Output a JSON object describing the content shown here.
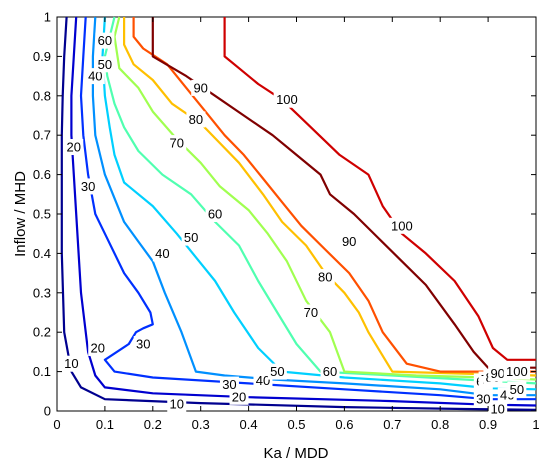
{
  "chart_data": {
    "type": "contour",
    "title": "",
    "xlabel": "Ka / MDD",
    "ylabel": "Inflow / MHD",
    "xlim": [
      0,
      1
    ],
    "ylim": [
      0,
      1
    ],
    "xticks": [
      "0",
      "0.1",
      "0.2",
      "0.3",
      "0.4",
      "0.5",
      "0.6",
      "0.7",
      "0.8",
      "0.9",
      "1"
    ],
    "yticks": [
      "0",
      "0.1",
      "0.2",
      "0.3",
      "0.4",
      "0.5",
      "0.6",
      "0.7",
      "0.8",
      "0.9",
      "1"
    ],
    "grid": false,
    "colormap": "jet",
    "levels": [
      {
        "level": "10",
        "color": "#00008f",
        "points": [
          [
            0.02,
            1.0
          ],
          [
            0.015,
            0.9
          ],
          [
            0.012,
            0.8
          ],
          [
            0.01,
            0.7
          ],
          [
            0.01,
            0.6
          ],
          [
            0.01,
            0.4
          ],
          [
            0.015,
            0.2
          ],
          [
            0.03,
            0.1
          ],
          [
            0.05,
            0.06
          ],
          [
            0.1,
            0.03
          ],
          [
            0.3,
            0.02
          ],
          [
            0.6,
            0.01
          ],
          [
            0.85,
            0.005
          ],
          [
            1.0,
            0.003
          ]
        ],
        "labels": [
          [
            0.03,
            0.12
          ],
          [
            0.25,
            0.018
          ],
          [
            0.92,
            0.005
          ]
        ]
      },
      {
        "level": "20",
        "color": "#0000cf",
        "points": [
          [
            0.04,
            1.0
          ],
          [
            0.035,
            0.9
          ],
          [
            0.03,
            0.8
          ],
          [
            0.03,
            0.7
          ],
          [
            0.035,
            0.6
          ],
          [
            0.04,
            0.5
          ],
          [
            0.05,
            0.3
          ],
          [
            0.065,
            0.15
          ],
          [
            0.08,
            0.09
          ],
          [
            0.1,
            0.06
          ],
          [
            0.2,
            0.045
          ],
          [
            0.4,
            0.035
          ],
          [
            0.7,
            0.025
          ],
          [
            0.9,
            0.016
          ],
          [
            1.0,
            0.014
          ]
        ],
        "labels": [
          [
            0.035,
            0.67
          ],
          [
            0.085,
            0.16
          ],
          [
            0.38,
            0.036
          ]
        ]
      },
      {
        "level": "30",
        "color": "#0030ff",
        "points": [
          [
            0.06,
            1.0
          ],
          [
            0.055,
            0.9
          ],
          [
            0.05,
            0.8
          ],
          [
            0.055,
            0.7
          ],
          [
            0.065,
            0.6
          ],
          [
            0.08,
            0.5
          ],
          [
            0.1,
            0.45
          ],
          [
            0.14,
            0.35
          ],
          [
            0.17,
            0.3
          ],
          [
            0.195,
            0.25
          ],
          [
            0.2,
            0.22
          ],
          [
            0.18,
            0.21
          ],
          [
            0.165,
            0.2
          ],
          [
            0.15,
            0.17
          ],
          [
            0.1,
            0.13
          ],
          [
            0.12,
            0.1
          ],
          [
            0.2,
            0.085
          ],
          [
            0.4,
            0.07
          ],
          [
            0.6,
            0.055
          ],
          [
            0.8,
            0.04
          ],
          [
            0.9,
            0.03
          ],
          [
            1.0,
            0.03
          ]
        ],
        "labels": [
          [
            0.065,
            0.57
          ],
          [
            0.18,
            0.17
          ],
          [
            0.36,
            0.067
          ],
          [
            0.89,
            0.03
          ]
        ]
      },
      {
        "level": "40",
        "color": "#0090ff",
        "points": [
          [
            0.08,
            1.0
          ],
          [
            0.075,
            0.9
          ],
          [
            0.075,
            0.8
          ],
          [
            0.08,
            0.7
          ],
          [
            0.1,
            0.6
          ],
          [
            0.14,
            0.48
          ],
          [
            0.17,
            0.43
          ],
          [
            0.2,
            0.38
          ],
          [
            0.225,
            0.3
          ],
          [
            0.26,
            0.2
          ],
          [
            0.29,
            0.1
          ],
          [
            0.35,
            0.09
          ],
          [
            0.45,
            0.08
          ],
          [
            0.6,
            0.07
          ],
          [
            0.8,
            0.055
          ],
          [
            0.9,
            0.04
          ],
          [
            1.0,
            0.04
          ]
        ],
        "labels": [
          [
            0.08,
            0.85
          ],
          [
            0.22,
            0.4
          ],
          [
            0.43,
            0.077
          ],
          [
            0.94,
            0.04
          ]
        ]
      },
      {
        "level": "50",
        "color": "#00d0ff",
        "points": [
          [
            0.1,
            1.0
          ],
          [
            0.095,
            0.9
          ],
          [
            0.1,
            0.8
          ],
          [
            0.11,
            0.72
          ],
          [
            0.12,
            0.65
          ],
          [
            0.14,
            0.58
          ],
          [
            0.2,
            0.52
          ],
          [
            0.25,
            0.45
          ],
          [
            0.29,
            0.39
          ],
          [
            0.33,
            0.33
          ],
          [
            0.37,
            0.25
          ],
          [
            0.42,
            0.16
          ],
          [
            0.47,
            0.1
          ],
          [
            0.6,
            0.085
          ],
          [
            0.8,
            0.07
          ],
          [
            0.9,
            0.058
          ],
          [
            1.0,
            0.055
          ]
        ],
        "labels": [
          [
            0.1,
            0.88
          ],
          [
            0.28,
            0.44
          ],
          [
            0.46,
            0.1
          ],
          [
            0.96,
            0.055
          ]
        ]
      },
      {
        "level": "60",
        "color": "#50ffb0",
        "points": [
          [
            0.12,
            1.0
          ],
          [
            0.11,
            0.95
          ],
          [
            0.1,
            0.9
          ],
          [
            0.105,
            0.85
          ],
          [
            0.12,
            0.78
          ],
          [
            0.14,
            0.72
          ],
          [
            0.17,
            0.66
          ],
          [
            0.22,
            0.6
          ],
          [
            0.28,
            0.55
          ],
          [
            0.33,
            0.48
          ],
          [
            0.38,
            0.42
          ],
          [
            0.42,
            0.33
          ],
          [
            0.46,
            0.25
          ],
          [
            0.5,
            0.17
          ],
          [
            0.55,
            0.1
          ],
          [
            0.7,
            0.09
          ],
          [
            0.85,
            0.08
          ],
          [
            1.0,
            0.07
          ]
        ],
        "labels": [
          [
            0.1,
            0.94
          ],
          [
            0.33,
            0.5
          ],
          [
            0.57,
            0.1
          ],
          [
            0.89,
            0.075
          ]
        ]
      },
      {
        "level": "70",
        "color": "#a0ff50",
        "points": [
          [
            0.13,
            1.0
          ],
          [
            0.12,
            0.95
          ],
          [
            0.13,
            0.87
          ],
          [
            0.17,
            0.82
          ],
          [
            0.2,
            0.76
          ],
          [
            0.25,
            0.69
          ],
          [
            0.3,
            0.63
          ],
          [
            0.34,
            0.57
          ],
          [
            0.4,
            0.51
          ],
          [
            0.44,
            0.45
          ],
          [
            0.48,
            0.38
          ],
          [
            0.52,
            0.28
          ],
          [
            0.57,
            0.2
          ],
          [
            0.6,
            0.1
          ],
          [
            0.75,
            0.09
          ],
          [
            0.9,
            0.085
          ],
          [
            1.0,
            0.08
          ]
        ],
        "labels": [
          [
            0.25,
            0.68
          ],
          [
            0.53,
            0.25
          ],
          [
            0.9,
            0.08
          ]
        ]
      },
      {
        "level": "80",
        "color": "#ffc000",
        "points": [
          [
            0.14,
            1.0
          ],
          [
            0.14,
            0.93
          ],
          [
            0.16,
            0.88
          ],
          [
            0.2,
            0.84
          ],
          [
            0.24,
            0.78
          ],
          [
            0.3,
            0.73
          ],
          [
            0.34,
            0.68
          ],
          [
            0.38,
            0.63
          ],
          [
            0.43,
            0.55
          ],
          [
            0.47,
            0.48
          ],
          [
            0.52,
            0.42
          ],
          [
            0.56,
            0.35
          ],
          [
            0.6,
            0.3
          ],
          [
            0.63,
            0.25
          ],
          [
            0.65,
            0.2
          ],
          [
            0.7,
            0.1
          ],
          [
            0.85,
            0.095
          ],
          [
            1.0,
            0.09
          ]
        ],
        "labels": [
          [
            0.29,
            0.74
          ],
          [
            0.56,
            0.34
          ],
          [
            0.91,
            0.085
          ]
        ]
      },
      {
        "level": "90",
        "color": "#ff5000",
        "points": [
          [
            0.16,
            1.0
          ],
          [
            0.16,
            0.95
          ],
          [
            0.18,
            0.92
          ],
          [
            0.23,
            0.88
          ],
          [
            0.27,
            0.82
          ],
          [
            0.31,
            0.76
          ],
          [
            0.35,
            0.7
          ],
          [
            0.39,
            0.65
          ],
          [
            0.43,
            0.59
          ],
          [
            0.47,
            0.53
          ],
          [
            0.51,
            0.47
          ],
          [
            0.56,
            0.41
          ],
          [
            0.61,
            0.35
          ],
          [
            0.65,
            0.28
          ],
          [
            0.68,
            0.2
          ],
          [
            0.73,
            0.12
          ],
          [
            0.8,
            0.1
          ],
          [
            0.9,
            0.1
          ],
          [
            1.0,
            0.1
          ]
        ],
        "labels": [
          [
            0.3,
            0.82
          ],
          [
            0.61,
            0.43
          ],
          [
            0.92,
            0.095
          ]
        ]
      },
      {
        "level": "100",
        "color": "#cf0000",
        "points": [
          [
            0.35,
            1.0
          ],
          [
            0.35,
            0.9
          ],
          [
            0.38,
            0.87
          ],
          [
            0.42,
            0.83
          ],
          [
            0.47,
            0.79
          ],
          [
            0.53,
            0.72
          ],
          [
            0.59,
            0.65
          ],
          [
            0.65,
            0.6
          ],
          [
            0.68,
            0.52
          ],
          [
            0.72,
            0.45
          ],
          [
            0.77,
            0.4
          ],
          [
            0.83,
            0.33
          ],
          [
            0.88,
            0.24
          ],
          [
            0.91,
            0.16
          ],
          [
            0.94,
            0.13
          ],
          [
            1.0,
            0.13
          ]
        ],
        "labels": [
          [
            0.48,
            0.79
          ],
          [
            0.72,
            0.47
          ],
          [
            0.96,
            0.1
          ]
        ]
      },
      {
        "level": "",
        "color": "#800000",
        "points": [
          [
            0.2,
            1.0
          ],
          [
            0.2,
            0.9
          ],
          [
            0.27,
            0.85
          ],
          [
            0.33,
            0.8
          ],
          [
            0.39,
            0.75
          ],
          [
            0.45,
            0.7
          ],
          [
            0.5,
            0.65
          ],
          [
            0.55,
            0.6
          ],
          [
            0.57,
            0.55
          ],
          [
            0.62,
            0.5
          ],
          [
            0.67,
            0.44
          ],
          [
            0.72,
            0.38
          ],
          [
            0.77,
            0.32
          ],
          [
            0.83,
            0.22
          ],
          [
            0.87,
            0.15
          ],
          [
            0.9,
            0.11
          ],
          [
            1.0,
            0.11
          ]
        ],
        "labels": []
      }
    ]
  }
}
